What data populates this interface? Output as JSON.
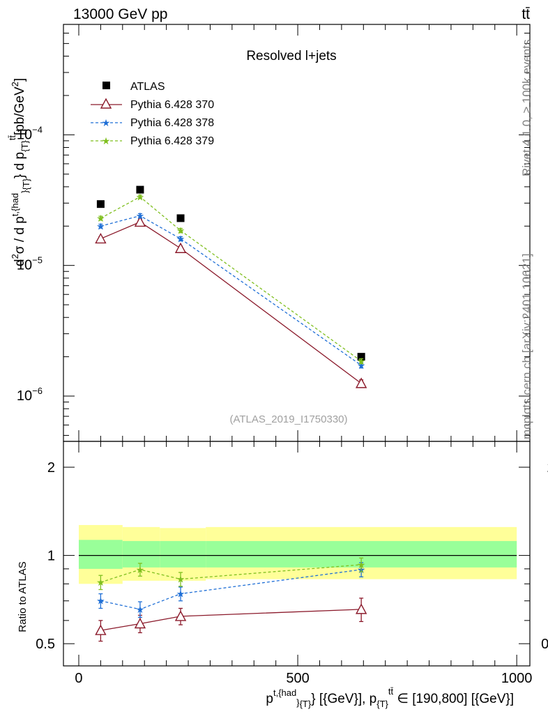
{
  "header": {
    "energy_label": "13000 GeV pp",
    "process_label": "tt̄"
  },
  "side_labels": {
    "rivet": "Rivet 4.1.0, ≥ 100k events",
    "mcplots": "mcplots.cern.ch [arXiv:2401.10621]"
  },
  "chart_data": [
    {
      "type": "line",
      "panel": "main",
      "title": "Resolved l+jets",
      "analysis_tag": "(ATLAS_2019_I1750330)",
      "ylabel_parts": {
        "d2": "d",
        "sup2": "2",
        "sigma": "σ / d p",
        "sup_thad": "t,{had",
        "sub_T1": "}",
        "sub_T2": "{T}",
        "mid": "} d p",
        "sub_T3": "{T}",
        "sup_tt": "tt̄",
        "unit": "[pb/GeV",
        "unit_sup": "2",
        "unit_end": "]"
      },
      "yscale": "log",
      "ylim": [
        4.5e-07,
        0.0007
      ],
      "yticks": [
        {
          "value": 1e-06,
          "base": "10",
          "exp": "−6"
        },
        {
          "value": 1e-05,
          "base": "10",
          "exp": "−5"
        },
        {
          "value": 0.0001,
          "base": "10",
          "exp": "−4"
        }
      ],
      "xlim": [
        -35,
        1030
      ],
      "x": [
        50,
        140,
        232.5,
        645
      ],
      "series": [
        {
          "name": "ATLAS",
          "color": "#000000",
          "marker": "square",
          "line": "none",
          "values": [
            2.95e-05,
            3.8e-05,
            2.3e-05,
            2e-06
          ],
          "errors": [
            0,
            0,
            0,
            0
          ]
        },
        {
          "name": "Pythia 6.428 370",
          "color": "#8B1A2B",
          "marker": "open-triangle",
          "line": "solid",
          "values": [
            1.6e-05,
            2.15e-05,
            1.35e-05,
            1.25e-06
          ],
          "errors": [
            6e-07,
            8e-07,
            5e-07,
            8e-08
          ]
        },
        {
          "name": "Pythia 6.428 378",
          "color": "#1F6FD6",
          "marker": "star",
          "line": "dashed",
          "values": [
            2e-05,
            2.4e-05,
            1.6e-05,
            1.72e-06
          ],
          "errors": [
            7e-07,
            9e-07,
            6e-07,
            8e-08
          ]
        },
        {
          "name": "Pythia 6.428 379",
          "color": "#7FBF1F",
          "marker": "star",
          "line": "dashed",
          "values": [
            2.3e-05,
            3.35e-05,
            1.85e-05,
            1.85e-06
          ],
          "errors": [
            8e-07,
            1e-06,
            7e-07,
            8e-08
          ]
        }
      ]
    },
    {
      "type": "line",
      "panel": "ratio",
      "ylabel": "Ratio to ATLAS",
      "yscale": "log",
      "ylim": [
        0.42,
        2.45
      ],
      "yticks": [
        {
          "value": 0.5,
          "label": "0.5"
        },
        {
          "value": 1,
          "label": "1"
        },
        {
          "value": 2,
          "label": "2"
        }
      ],
      "xlim": [
        -35,
        1030
      ],
      "xticks": [
        {
          "value": 0,
          "label": "0"
        },
        {
          "value": 500,
          "label": "500"
        },
        {
          "value": 1000,
          "label": "1000"
        }
      ],
      "xlabel_parts": {
        "p1": "p",
        "sup_thad": "t,{had",
        "sub_T1": "}",
        "sub_T2": "{T}",
        "mid": "} [{GeV}], p",
        "sub_T3": "{T}",
        "sup_tt": "tt̄",
        "range": " ∈ [190,800] [{GeV}]"
      },
      "bands": {
        "edges": [
          0,
          100,
          185,
          290,
          1000
        ],
        "stat": [
          [
            0.8,
            1.27
          ],
          [
            0.82,
            1.25
          ],
          [
            0.82,
            1.24
          ],
          [
            0.83,
            1.25
          ]
        ],
        "syst": [
          [
            0.9,
            1.13
          ],
          [
            0.91,
            1.12
          ],
          [
            0.91,
            1.12
          ],
          [
            0.91,
            1.12
          ]
        ]
      },
      "x": [
        50,
        140,
        232.5,
        645
      ],
      "series": [
        {
          "name": "Pythia 6.428 370",
          "color": "#8B1A2B",
          "marker": "open-triangle",
          "line": "solid",
          "values": [
            0.555,
            0.585,
            0.62,
            0.655
          ],
          "errors": [
            0.045,
            0.04,
            0.04,
            0.06
          ]
        },
        {
          "name": "Pythia 6.428 378",
          "color": "#1F6FD6",
          "marker": "star",
          "line": "dashed",
          "values": [
            0.7,
            0.655,
            0.74,
            0.895
          ],
          "errors": [
            0.04,
            0.04,
            0.04,
            0.05
          ]
        },
        {
          "name": "Pythia 6.428 379",
          "color": "#7FBF1F",
          "marker": "star",
          "line": "dashed",
          "values": [
            0.81,
            0.895,
            0.83,
            0.93
          ],
          "errors": [
            0.045,
            0.045,
            0.045,
            0.05
          ]
        }
      ]
    }
  ]
}
